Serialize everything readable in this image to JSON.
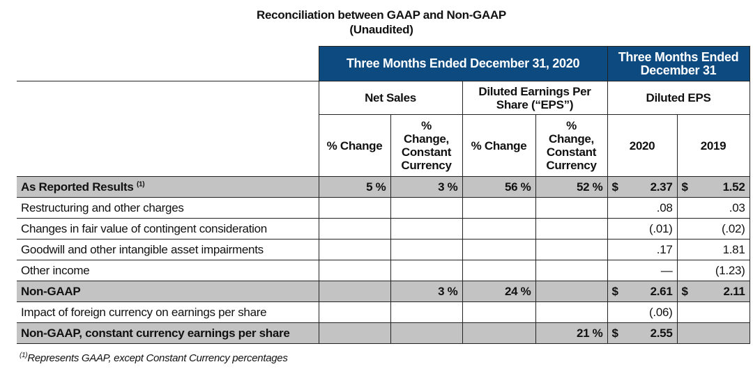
{
  "title": "Reconciliation between GAAP and Non-GAAP",
  "subtitle": "(Unaudited)",
  "headers": {
    "group1": "Three Months Ended December 31, 2020",
    "group2": "Three Months Ended December 31",
    "net_sales": "Net Sales",
    "eps": "Diluted Earnings Per Share (“EPS”)",
    "diluted_eps": "Diluted EPS",
    "pct_change": "% Change",
    "pct_change_cc": "% Change, Constant Currency",
    "y2020": "2020",
    "y2019": "2019"
  },
  "rows": [
    {
      "label": "As Reported Results",
      "sup": "(1)",
      "ns": "5 %",
      "ns_cc": "3 %",
      "eps": "56 %",
      "eps_cc": "52 %",
      "s2020": "$",
      "v2020": "2.37",
      "s2019": "$",
      "v2019": "1.52"
    },
    {
      "label": "Restructuring and other charges",
      "v2020": ".08",
      "v2019": ".03"
    },
    {
      "label": "Changes in fair value of contingent consideration",
      "v2020": "(.01)",
      "v2019": "(.02)"
    },
    {
      "label": "Goodwill and other intangible asset impairments",
      "v2020": ".17",
      "v2019": "1.81"
    },
    {
      "label": "Other income",
      "v2020": "—",
      "v2019": "(1.23)"
    },
    {
      "label": "Non-GAAP",
      "ns_cc": "3 %",
      "eps": "24 %",
      "s2020": "$",
      "v2020": "2.61",
      "s2019": "$",
      "v2019": "2.11"
    },
    {
      "label": "Impact of foreign currency on earnings per share",
      "v2020": "(.06)"
    },
    {
      "label": "Non-GAAP, constant currency earnings per share",
      "eps_cc": "21 %",
      "s2020": "$",
      "v2020": "2.55"
    }
  ],
  "footnote_mark": "(1)",
  "footnote": "Represents GAAP, except Constant Currency percentages"
}
